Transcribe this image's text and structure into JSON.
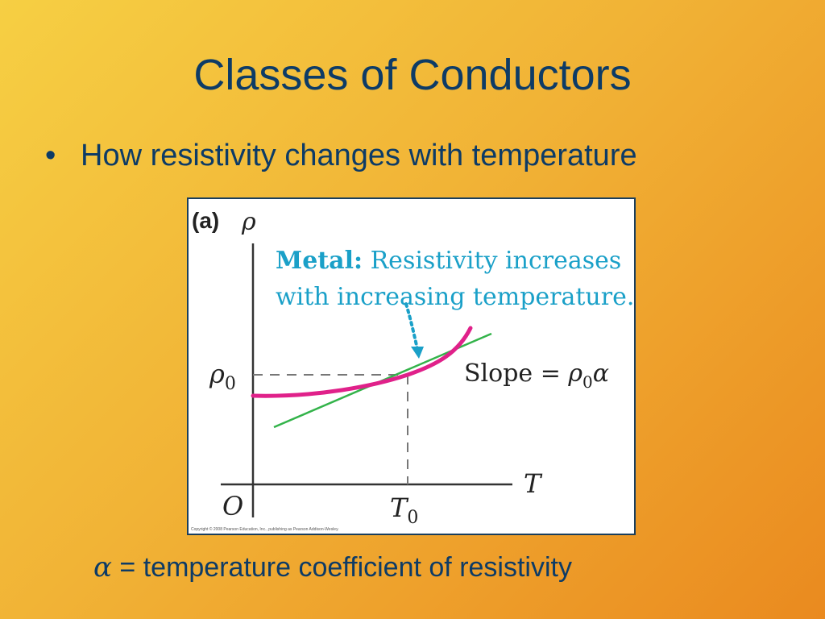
{
  "slide": {
    "title": "Classes of Conductors",
    "bullet_marker": "•",
    "bullet": "How resistivity changes with temperature",
    "footer_symbol": "α",
    "footer_text": " = temperature coefficient of resistivity"
  },
  "figure": {
    "panel_label": "(a)",
    "y_axis_label": "ρ",
    "x_axis_label": "T",
    "origin_label": "O",
    "rho0_main": "ρ",
    "rho0_sub": "0",
    "t0_main": "T",
    "t0_sub": "0",
    "annotation_bold": "Metal:",
    "annotation_line1": " Resistivity increases",
    "annotation_line2": "with increasing temperature.",
    "slope_text": "Slope = ",
    "slope_rho": "ρ",
    "slope_sub": "0",
    "slope_alpha": "α",
    "copyright": "Copyright © 2008 Pearson Education, Inc., publishing as Pearson Addison-Wesley.",
    "colors": {
      "curve": "#e0218a",
      "tangent": "#33b34a",
      "annotation": "#1aa0c8",
      "axis": "#333333",
      "dashed": "#777777"
    }
  }
}
